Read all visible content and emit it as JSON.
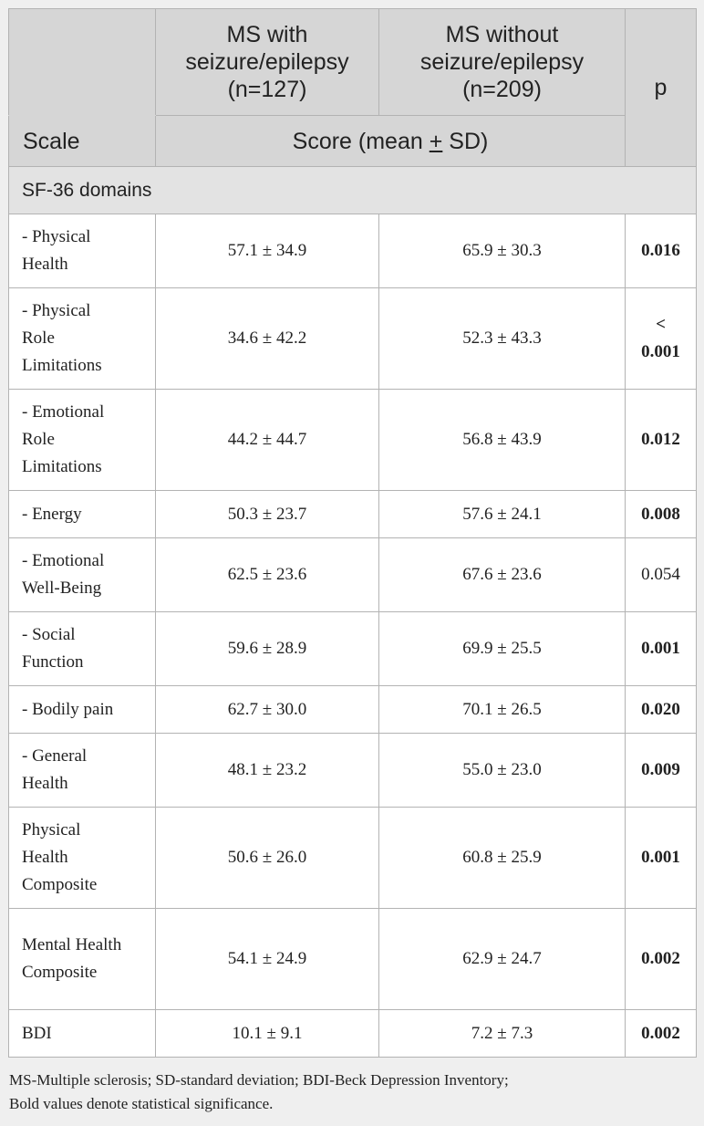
{
  "header": {
    "col1_top": "",
    "col2": "MS with seizure/epilepsy (n=127)",
    "col3": "MS without seizure/epilepsy (n=209)",
    "col4": "p",
    "scale_label": "Scale",
    "score_label_pre": "Score (mean ",
    "score_label_pm": "+",
    "score_label_post": " SD)"
  },
  "section": "SF-36 domains",
  "rows": [
    {
      "label": "- Physical Health",
      "with": "57.1 ± 34.9",
      "without": "65.9 ± 30.3",
      "p": "0.016",
      "bold": true
    },
    {
      "label": "- Physical Role Limitations",
      "with": "34.6 ± 42.2",
      "without": "52.3 ± 43.3",
      "p": "< 0.001",
      "bold": true
    },
    {
      "label": "- Emotional Role Limitations",
      "with": "44.2 ± 44.7",
      "without": "56.8 ± 43.9",
      "p": "0.012",
      "bold": true
    },
    {
      "label": "- Energy",
      "with": "50.3 ± 23.7",
      "without": "57.6 ± 24.1",
      "p": "0.008",
      "bold": true
    },
    {
      "label": "- Emotional Well-Being",
      "with": "62.5 ± 23.6",
      "without": "67.6 ± 23.6",
      "p": "0.054",
      "bold": false
    },
    {
      "label": "- Social Function",
      "with": "59.6 ± 28.9",
      "without": "69.9 ± 25.5",
      "p": "0.001",
      "bold": true
    },
    {
      "label": "- Bodily pain",
      "with": "62.7 ± 30.0",
      "without": "70.1 ± 26.5",
      "p": "0.020",
      "bold": true
    },
    {
      "label": "- General Health",
      "with": "48.1 ± 23.2",
      "without": "55.0 ± 23.0",
      "p": "0.009",
      "bold": true
    },
    {
      "label": "Physical Health Composite",
      "with": "50.6 ± 26.0",
      "without": "60.8 ± 25.9",
      "p": "0.001",
      "bold": true
    },
    {
      "label": "Mental Health Composite",
      "with": "54.1 ± 24.9",
      "without": "62.9 ± 24.7",
      "p": "0.002",
      "bold": true
    },
    {
      "label": "BDI",
      "with": "10.1 ± 9.1",
      "without": "7.2 ± 7.3",
      "p": "0.002",
      "bold": true
    }
  ],
  "footnote": {
    "line1": "MS-Multiple sclerosis; SD-standard deviation; BDI-Beck Depression Inventory;",
    "line2": "Bold values denote statistical significance."
  }
}
